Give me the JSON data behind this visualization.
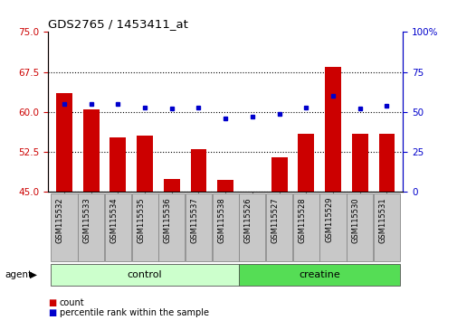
{
  "title": "GDS2765 / 1453411_at",
  "samples": [
    "GSM115532",
    "GSM115533",
    "GSM115534",
    "GSM115535",
    "GSM115536",
    "GSM115537",
    "GSM115538",
    "GSM115526",
    "GSM115527",
    "GSM115528",
    "GSM115529",
    "GSM115530",
    "GSM115531"
  ],
  "count_values": [
    63.5,
    60.5,
    55.2,
    55.5,
    47.5,
    53.0,
    47.3,
    45.1,
    51.5,
    56.0,
    68.5,
    56.0,
    56.0
  ],
  "percentile_values": [
    55,
    55,
    55,
    53,
    52,
    53,
    46,
    47,
    49,
    53,
    60,
    52,
    54
  ],
  "left_ylim": [
    45,
    75
  ],
  "left_yticks": [
    45,
    52.5,
    60,
    67.5,
    75
  ],
  "right_ylim": [
    0,
    100
  ],
  "right_yticks": [
    0,
    25,
    50,
    75,
    100
  ],
  "right_yticklabels": [
    "0",
    "25",
    "50",
    "75",
    "100%"
  ],
  "bar_color": "#cc0000",
  "dot_color": "#0000cc",
  "bar_width": 0.6,
  "control_color": "#ccffcc",
  "creatine_color": "#55dd55",
  "control_label": "control",
  "creatine_label": "creatine",
  "agent_label": "agent",
  "legend_count": "count",
  "legend_percentile": "percentile rank within the sample",
  "left_tick_color": "#cc0000",
  "right_tick_color": "#0000cc",
  "label_bg_color": "#c8c8c8",
  "n_control": 7,
  "n_creatine": 6
}
